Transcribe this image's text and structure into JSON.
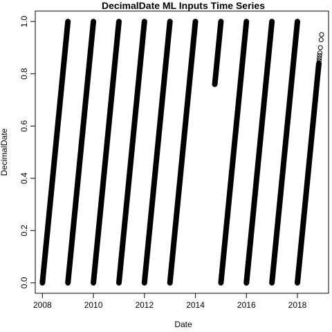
{
  "chart_data": {
    "type": "scatter",
    "title": "DecimalDate ML Inputs Time Series",
    "xlabel": "Date",
    "ylabel": "DecimalDate",
    "xlim": [
      2007.72,
      2019.22
    ],
    "ylim": [
      -0.04,
      1.04
    ],
    "x_ticks": [
      2008,
      2010,
      2012,
      2014,
      2016,
      2018
    ],
    "x_tick_labels": [
      "2008",
      "2010",
      "2012",
      "2014",
      "2016",
      "2018"
    ],
    "y_ticks": [
      0.0,
      0.2,
      0.4,
      0.6,
      0.8,
      1.0
    ],
    "y_tick_labels": [
      "0.0",
      "0.2",
      "0.4",
      "0.6",
      "0.8",
      "1.0"
    ],
    "grid": false,
    "marker": "open-circle",
    "color": "#000000",
    "segments": [
      {
        "x": [
          2008.0,
          2009.0
        ],
        "y": [
          0.0,
          1.0
        ]
      },
      {
        "x": [
          2009.0,
          2010.0
        ],
        "y": [
          0.0,
          1.0
        ]
      },
      {
        "x": [
          2010.0,
          2011.0
        ],
        "y": [
          0.0,
          1.0
        ]
      },
      {
        "x": [
          2011.0,
          2012.0
        ],
        "y": [
          0.0,
          1.0
        ]
      },
      {
        "x": [
          2012.0,
          2013.0
        ],
        "y": [
          0.0,
          1.0
        ]
      },
      {
        "x": [
          2013.0,
          2014.0
        ],
        "y": [
          0.0,
          1.0
        ]
      },
      {
        "x": [
          2014.76,
          2015.0
        ],
        "y": [
          0.76,
          1.0
        ]
      },
      {
        "x": [
          2015.0,
          2016.0
        ],
        "y": [
          0.0,
          1.0
        ]
      },
      {
        "x": [
          2016.0,
          2016.13
        ],
        "y": [
          0.0,
          0.13
        ]
      },
      {
        "x": [
          2016.15,
          2016.16
        ],
        "y": [
          0.15,
          0.16
        ]
      },
      {
        "x": [
          2016.0,
          2017.0
        ],
        "y": [
          0.0,
          1.0
        ]
      },
      {
        "x": [
          2017.0,
          2018.0
        ],
        "y": [
          0.0,
          1.0
        ]
      },
      {
        "x": [
          2018.0,
          2018.84
        ],
        "y": [
          0.0,
          0.84
        ]
      }
    ],
    "sparse_points": [
      {
        "x": 2018.85,
        "y": 0.85
      },
      {
        "x": 2018.86,
        "y": 0.86
      },
      {
        "x": 2018.87,
        "y": 0.87
      },
      {
        "x": 2018.88,
        "y": 0.88
      },
      {
        "x": 2018.9,
        "y": 0.9
      },
      {
        "x": 2018.93,
        "y": 0.93
      },
      {
        "x": 2018.95,
        "y": 0.95
      }
    ]
  }
}
